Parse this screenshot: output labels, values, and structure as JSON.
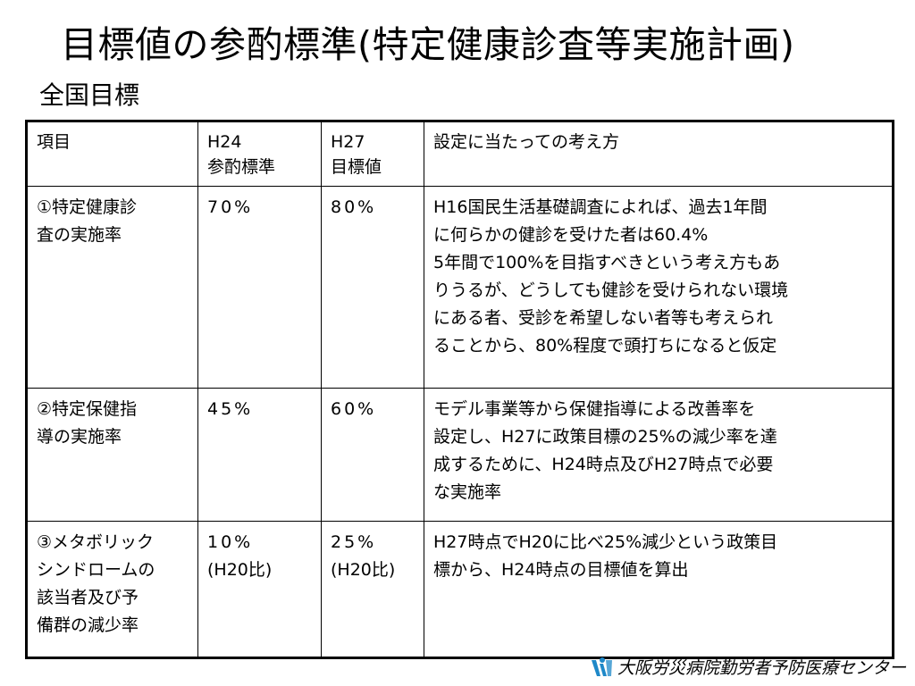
{
  "title": "目標値の参酌標準(特定健康診査等実施計画)",
  "subtitle": "全国目標",
  "table": {
    "headers": {
      "item": "項目",
      "h24": [
        "H24",
        "参酌標準"
      ],
      "h27": [
        "H27",
        "目標値"
      ],
      "approach": "設定に当たっての考え方"
    },
    "rows": [
      {
        "item": [
          "①特定健康診",
          "査の実施率"
        ],
        "h24": [
          "70%"
        ],
        "h27": [
          "80%"
        ],
        "approach": [
          "H16国民生活基礎調査によれば、過去1年間",
          "に何らかの健診を受けた者は60.4%",
          "5年間で100%を目指すべきという考え方もあ",
          "りうるが、どうしても健診を受けられない環境",
          "にある者、受診を希望しない者等も考えられ",
          "ることから、80%程度で頭打ちになると仮定"
        ]
      },
      {
        "item": [
          "②特定保健指",
          "導の実施率"
        ],
        "h24": [
          "45%"
        ],
        "h27": [
          "60%"
        ],
        "approach": [
          "モデル事業等から保健指導による改善率を",
          "設定し、H27に政策目標の25%の減少率を達",
          "成するために、H24時点及びH27時点で必要",
          "な実施率"
        ]
      },
      {
        "item": [
          "③メタボリック",
          "シンドロームの",
          "該当者及び予",
          "備群の減少率"
        ],
        "h24": [
          "10%",
          "(H20比)"
        ],
        "h27": [
          "25%",
          "(H20比)"
        ],
        "approach": [
          "H27時点でH20に比べ25%減少という政策目",
          "標から、H24時点の目標値を算出"
        ]
      }
    ]
  },
  "footer": {
    "organization": "大阪労災病院勤労者予防医療センター",
    "logo_icon": "organization-logo-icon",
    "logo_color": "#1e88c8"
  }
}
